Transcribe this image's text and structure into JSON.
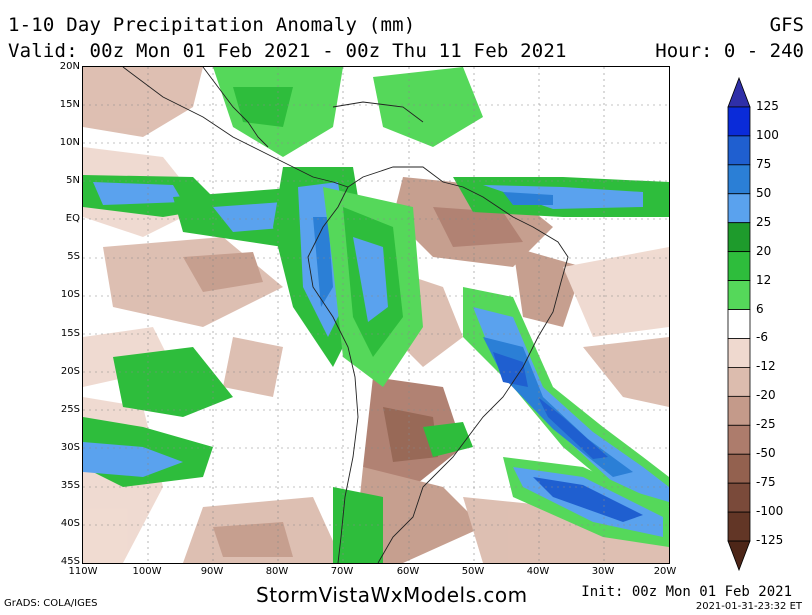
{
  "header": {
    "title": "1-10 Day Precipitation Anomaly (mm)",
    "valid": "Valid: 00z Mon 01 Feb 2021 - 00z Thu 11 Feb 2021",
    "model": "GFS",
    "hours": "Hour: 0 - 240"
  },
  "map": {
    "lat_labels": [
      "20N",
      "15N",
      "10N",
      "5N",
      "EQ",
      "5S",
      "10S",
      "15S",
      "20S",
      "25S",
      "30S",
      "35S",
      "40S",
      "45S"
    ],
    "lon_labels": [
      "110W",
      "100W",
      "90W",
      "80W",
      "70W",
      "60W",
      "50W",
      "40W",
      "30W",
      "20W"
    ],
    "lon_range": [
      -110,
      -20
    ],
    "lat_range": [
      -45,
      20
    ],
    "grid": true
  },
  "legend": {
    "levels": [
      "125",
      "100",
      "75",
      "50",
      "25",
      "20",
      "12",
      "6",
      "-6",
      "-12",
      "-20",
      "-25",
      "-50",
      "-75",
      "-100",
      "-125"
    ],
    "colors": [
      "#2f2fa8",
      "#0a2bd9",
      "#1f5fd0",
      "#2b7fd6",
      "#5aa2ee",
      "#1e9b2c",
      "#2ebd3c",
      "#55d85a",
      "#ffffff",
      "#efd9cf",
      "#dcbcae",
      "#c49a8a",
      "#ad7c6c",
      "#93614f",
      "#7a4a3a",
      "#623626",
      "#4d2618"
    ]
  },
  "footer": {
    "grads": "GrADS: COLA/IGES",
    "site": "StormVistaWxModels.com",
    "init": "Init: 00z Mon 01 Feb 2021",
    "timestamp": "2021-01-31-23:32 ET"
  }
}
